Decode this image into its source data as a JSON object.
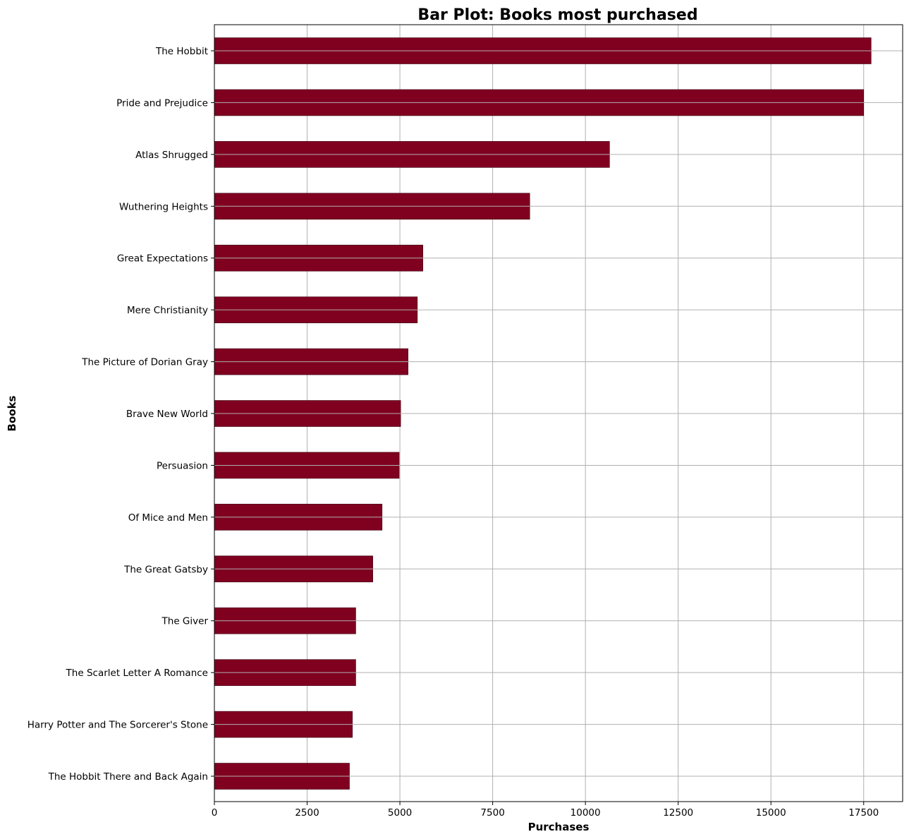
{
  "chart_data": {
    "type": "bar",
    "orientation": "horizontal",
    "title": "Bar Plot: Books most purchased",
    "xlabel": "Purchases",
    "ylabel": "Books",
    "xlim": [
      0,
      18550
    ],
    "xticks": [
      0,
      2500,
      5000,
      7500,
      10000,
      12500,
      15000,
      17500
    ],
    "xtick_labels": [
      "0",
      "2500",
      "5000",
      "7500",
      "10000",
      "12500",
      "15000",
      "17500"
    ],
    "grid": true,
    "bar_color": "#800020",
    "categories": [
      "The Hobbit",
      "Pride and Prejudice",
      "Atlas Shrugged",
      "Wuthering Heights",
      "Great Expectations",
      "Mere Christianity",
      "The Picture of Dorian Gray",
      "Brave New World",
      "Persuasion",
      "Of Mice and Men",
      "The Great Gatsby",
      "The Giver",
      "The Scarlet Letter A Romance",
      "Harry Potter and The Sorcerer's Stone",
      "The Hobbit There and Back Again"
    ],
    "values": [
      17700,
      17500,
      10650,
      8500,
      5620,
      5470,
      5220,
      5020,
      4980,
      4520,
      4270,
      3810,
      3810,
      3720,
      3640
    ]
  }
}
